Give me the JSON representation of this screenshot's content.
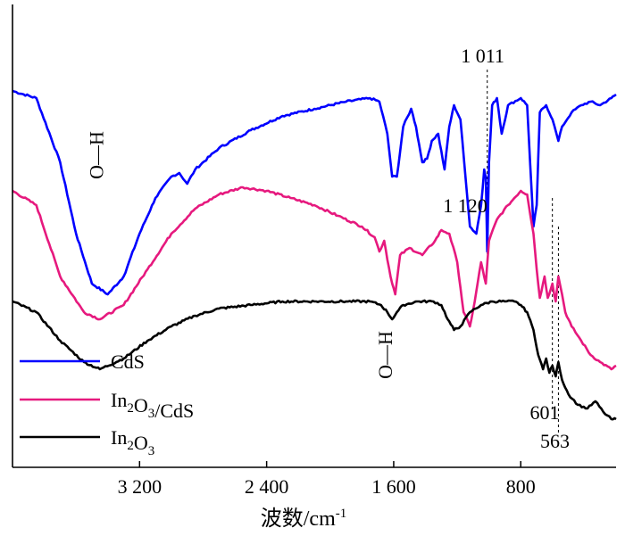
{
  "chart_data": {
    "type": "line",
    "title": "",
    "xlabel": "波数/cm",
    "xlabel_sup": "-1",
    "ylabel": "",
    "xlim": [
      4000,
      200
    ],
    "x_reversed": true,
    "x_ticks": [
      3200,
      2400,
      1600,
      800
    ],
    "x_tick_labels": [
      "3 200",
      "2 400",
      "1 600",
      "800"
    ],
    "grid": false,
    "legend_position": "bottom-left",
    "series": [
      {
        "name": "CdS",
        "color": "#0000ff",
        "points": [
          [
            4000,
            0.92
          ],
          [
            3850,
            0.9
          ],
          [
            3700,
            0.72
          ],
          [
            3600,
            0.52
          ],
          [
            3500,
            0.38
          ],
          [
            3400,
            0.35
          ],
          [
            3300,
            0.4
          ],
          [
            3200,
            0.52
          ],
          [
            3100,
            0.62
          ],
          [
            3000,
            0.68
          ],
          [
            2950,
            0.69
          ],
          [
            2900,
            0.66
          ],
          [
            2850,
            0.7
          ],
          [
            2700,
            0.76
          ],
          [
            2500,
            0.81
          ],
          [
            2300,
            0.85
          ],
          [
            2100,
            0.87
          ],
          [
            1900,
            0.89
          ],
          [
            1750,
            0.9
          ],
          [
            1690,
            0.89
          ],
          [
            1640,
            0.8
          ],
          [
            1610,
            0.68
          ],
          [
            1580,
            0.68
          ],
          [
            1540,
            0.82
          ],
          [
            1490,
            0.87
          ],
          [
            1460,
            0.82
          ],
          [
            1420,
            0.72
          ],
          [
            1390,
            0.73
          ],
          [
            1360,
            0.78
          ],
          [
            1320,
            0.8
          ],
          [
            1280,
            0.7
          ],
          [
            1250,
            0.82
          ],
          [
            1220,
            0.88
          ],
          [
            1180,
            0.84
          ],
          [
            1120,
            0.54
          ],
          [
            1080,
            0.52
          ],
          [
            1050,
            0.6
          ],
          [
            1030,
            0.7
          ],
          [
            1020,
            0.68
          ],
          [
            1011,
            0.47
          ],
          [
            1000,
            0.72
          ],
          [
            980,
            0.88
          ],
          [
            950,
            0.9
          ],
          [
            920,
            0.8
          ],
          [
            880,
            0.88
          ],
          [
            800,
            0.9
          ],
          [
            760,
            0.88
          ],
          [
            720,
            0.54
          ],
          [
            700,
            0.6
          ],
          [
            680,
            0.86
          ],
          [
            640,
            0.88
          ],
          [
            600,
            0.84
          ],
          [
            563,
            0.78
          ],
          [
            540,
            0.82
          ],
          [
            480,
            0.86
          ],
          [
            420,
            0.88
          ],
          [
            360,
            0.89
          ],
          [
            300,
            0.88
          ],
          [
            230,
            0.9
          ],
          [
            200,
            0.91
          ]
        ]
      },
      {
        "name": "In2O3/CdS",
        "color": "#e6197e",
        "points": [
          [
            4000,
            0.64
          ],
          [
            3850,
            0.6
          ],
          [
            3700,
            0.4
          ],
          [
            3550,
            0.3
          ],
          [
            3450,
            0.28
          ],
          [
            3300,
            0.32
          ],
          [
            3150,
            0.42
          ],
          [
            3000,
            0.52
          ],
          [
            2850,
            0.59
          ],
          [
            2700,
            0.63
          ],
          [
            2550,
            0.65
          ],
          [
            2400,
            0.64
          ],
          [
            2250,
            0.62
          ],
          [
            2100,
            0.6
          ],
          [
            1950,
            0.57
          ],
          [
            1800,
            0.54
          ],
          [
            1720,
            0.51
          ],
          [
            1690,
            0.47
          ],
          [
            1660,
            0.5
          ],
          [
            1620,
            0.4
          ],
          [
            1590,
            0.35
          ],
          [
            1560,
            0.46
          ],
          [
            1500,
            0.48
          ],
          [
            1420,
            0.46
          ],
          [
            1340,
            0.5
          ],
          [
            1300,
            0.53
          ],
          [
            1250,
            0.52
          ],
          [
            1200,
            0.44
          ],
          [
            1160,
            0.3
          ],
          [
            1120,
            0.26
          ],
          [
            1090,
            0.33
          ],
          [
            1050,
            0.44
          ],
          [
            1020,
            0.38
          ],
          [
            1000,
            0.5
          ],
          [
            950,
            0.56
          ],
          [
            880,
            0.6
          ],
          [
            840,
            0.62
          ],
          [
            800,
            0.64
          ],
          [
            760,
            0.63
          ],
          [
            720,
            0.52
          ],
          [
            700,
            0.42
          ],
          [
            680,
            0.34
          ],
          [
            650,
            0.4
          ],
          [
            630,
            0.34
          ],
          [
            601,
            0.38
          ],
          [
            580,
            0.33
          ],
          [
            563,
            0.4
          ],
          [
            540,
            0.35
          ],
          [
            520,
            0.3
          ],
          [
            480,
            0.26
          ],
          [
            420,
            0.22
          ],
          [
            360,
            0.18
          ],
          [
            300,
            0.16
          ],
          [
            230,
            0.14
          ],
          [
            200,
            0.15
          ]
        ]
      },
      {
        "name": "In2O3",
        "color": "#000000",
        "points": [
          [
            4000,
            0.33
          ],
          [
            3850,
            0.3
          ],
          [
            3700,
            0.22
          ],
          [
            3550,
            0.16
          ],
          [
            3450,
            0.14
          ],
          [
            3300,
            0.17
          ],
          [
            3150,
            0.22
          ],
          [
            3000,
            0.26
          ],
          [
            2850,
            0.29
          ],
          [
            2700,
            0.31
          ],
          [
            2500,
            0.32
          ],
          [
            2300,
            0.33
          ],
          [
            2100,
            0.33
          ],
          [
            1900,
            0.33
          ],
          [
            1750,
            0.33
          ],
          [
            1680,
            0.32
          ],
          [
            1640,
            0.3
          ],
          [
            1610,
            0.28
          ],
          [
            1580,
            0.3
          ],
          [
            1540,
            0.32
          ],
          [
            1450,
            0.33
          ],
          [
            1350,
            0.33
          ],
          [
            1300,
            0.32
          ],
          [
            1260,
            0.28
          ],
          [
            1220,
            0.25
          ],
          [
            1180,
            0.26
          ],
          [
            1120,
            0.3
          ],
          [
            1050,
            0.32
          ],
          [
            980,
            0.33
          ],
          [
            900,
            0.33
          ],
          [
            840,
            0.33
          ],
          [
            800,
            0.32
          ],
          [
            760,
            0.3
          ],
          [
            720,
            0.25
          ],
          [
            690,
            0.18
          ],
          [
            660,
            0.14
          ],
          [
            640,
            0.17
          ],
          [
            620,
            0.13
          ],
          [
            601,
            0.15
          ],
          [
            580,
            0.12
          ],
          [
            563,
            0.16
          ],
          [
            540,
            0.11
          ],
          [
            500,
            0.07
          ],
          [
            440,
            0.04
          ],
          [
            380,
            0.03
          ],
          [
            330,
            0.05
          ],
          [
            280,
            0.02
          ],
          [
            230,
            0.0
          ],
          [
            200,
            0.0
          ]
        ]
      }
    ],
    "annotations": [
      {
        "text": "O—H",
        "x": 3430,
        "y": 0.74,
        "rotation": -90
      },
      {
        "text": "O—H",
        "x": 1610,
        "y": 0.18,
        "rotation": -90
      },
      {
        "text": "1 011",
        "x": 1040,
        "y": 1.0
      },
      {
        "text": "1 120",
        "x": 1150,
        "y": 0.58
      },
      {
        "text": "601",
        "x": 650,
        "y": 0.0
      },
      {
        "text": "563",
        "x": 585,
        "y": -0.08
      }
    ],
    "reference_lines": [
      {
        "x": 1011,
        "y_from": 0.98,
        "y_to": 0.44
      },
      {
        "x": 601,
        "y_from": 0.62,
        "y_to": 0.02
      },
      {
        "x": 563,
        "y_from": 0.54,
        "y_to": -0.04
      }
    ]
  }
}
